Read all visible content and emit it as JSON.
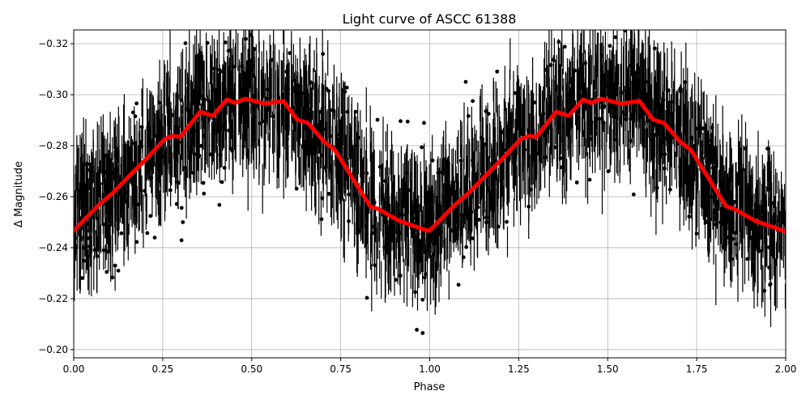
{
  "chart_data": {
    "type": "scatter",
    "title": "Light curve of ASCC 61388",
    "xlabel": "Phase",
    "ylabel": "Δ Magnitude",
    "xlim": [
      0,
      2
    ],
    "ylim": [
      -0.1968,
      -0.3254
    ],
    "y_inverted": true,
    "grid": true,
    "xticks": [
      "0.00",
      "0.25",
      "0.50",
      "0.75",
      "1.00",
      "1.25",
      "1.50",
      "1.75",
      "2.00"
    ],
    "yticks": [
      "−0.32",
      "−0.30",
      "−0.28",
      "−0.26",
      "−0.24",
      "−0.22",
      "−0.20"
    ],
    "series": [
      {
        "style": "black points with vertical error bars",
        "color": "#000000",
        "note_range": [
          -0.2,
          -0.32
        ]
      },
      {
        "style": "binned mean curve",
        "color": "#ff0000",
        "x": [
          0.0,
          0.073,
          0.111,
          0.157,
          0.196,
          0.255,
          0.278,
          0.3,
          0.355,
          0.391,
          0.43,
          0.453,
          0.482,
          0.537,
          0.589,
          0.628,
          0.658,
          0.703,
          0.733,
          0.833,
          0.855,
          0.915,
          0.992,
          1.0,
          1.073,
          1.111,
          1.157,
          1.196,
          1.255,
          1.278,
          1.3,
          1.355,
          1.391,
          1.43,
          1.453,
          1.482,
          1.537,
          1.589,
          1.628,
          1.658,
          1.703,
          1.733,
          1.833,
          1.855,
          1.915,
          1.992,
          2.0
        ],
        "y": [
          -0.2467,
          -0.2571,
          -0.2616,
          -0.2683,
          -0.2737,
          -0.2825,
          -0.2838,
          -0.2835,
          -0.2933,
          -0.2917,
          -0.2981,
          -0.2968,
          -0.2984,
          -0.2965,
          -0.2975,
          -0.2902,
          -0.2889,
          -0.2816,
          -0.2784,
          -0.2562,
          -0.2552,
          -0.2505,
          -0.2467,
          -0.2467,
          -0.2571,
          -0.2616,
          -0.2683,
          -0.2737,
          -0.2825,
          -0.2838,
          -0.2835,
          -0.2933,
          -0.2917,
          -0.2981,
          -0.2968,
          -0.2984,
          -0.2965,
          -0.2975,
          -0.2902,
          -0.2889,
          -0.2816,
          -0.2784,
          -0.2562,
          -0.2552,
          -0.2505,
          -0.2467,
          -0.2462
        ]
      }
    ]
  }
}
